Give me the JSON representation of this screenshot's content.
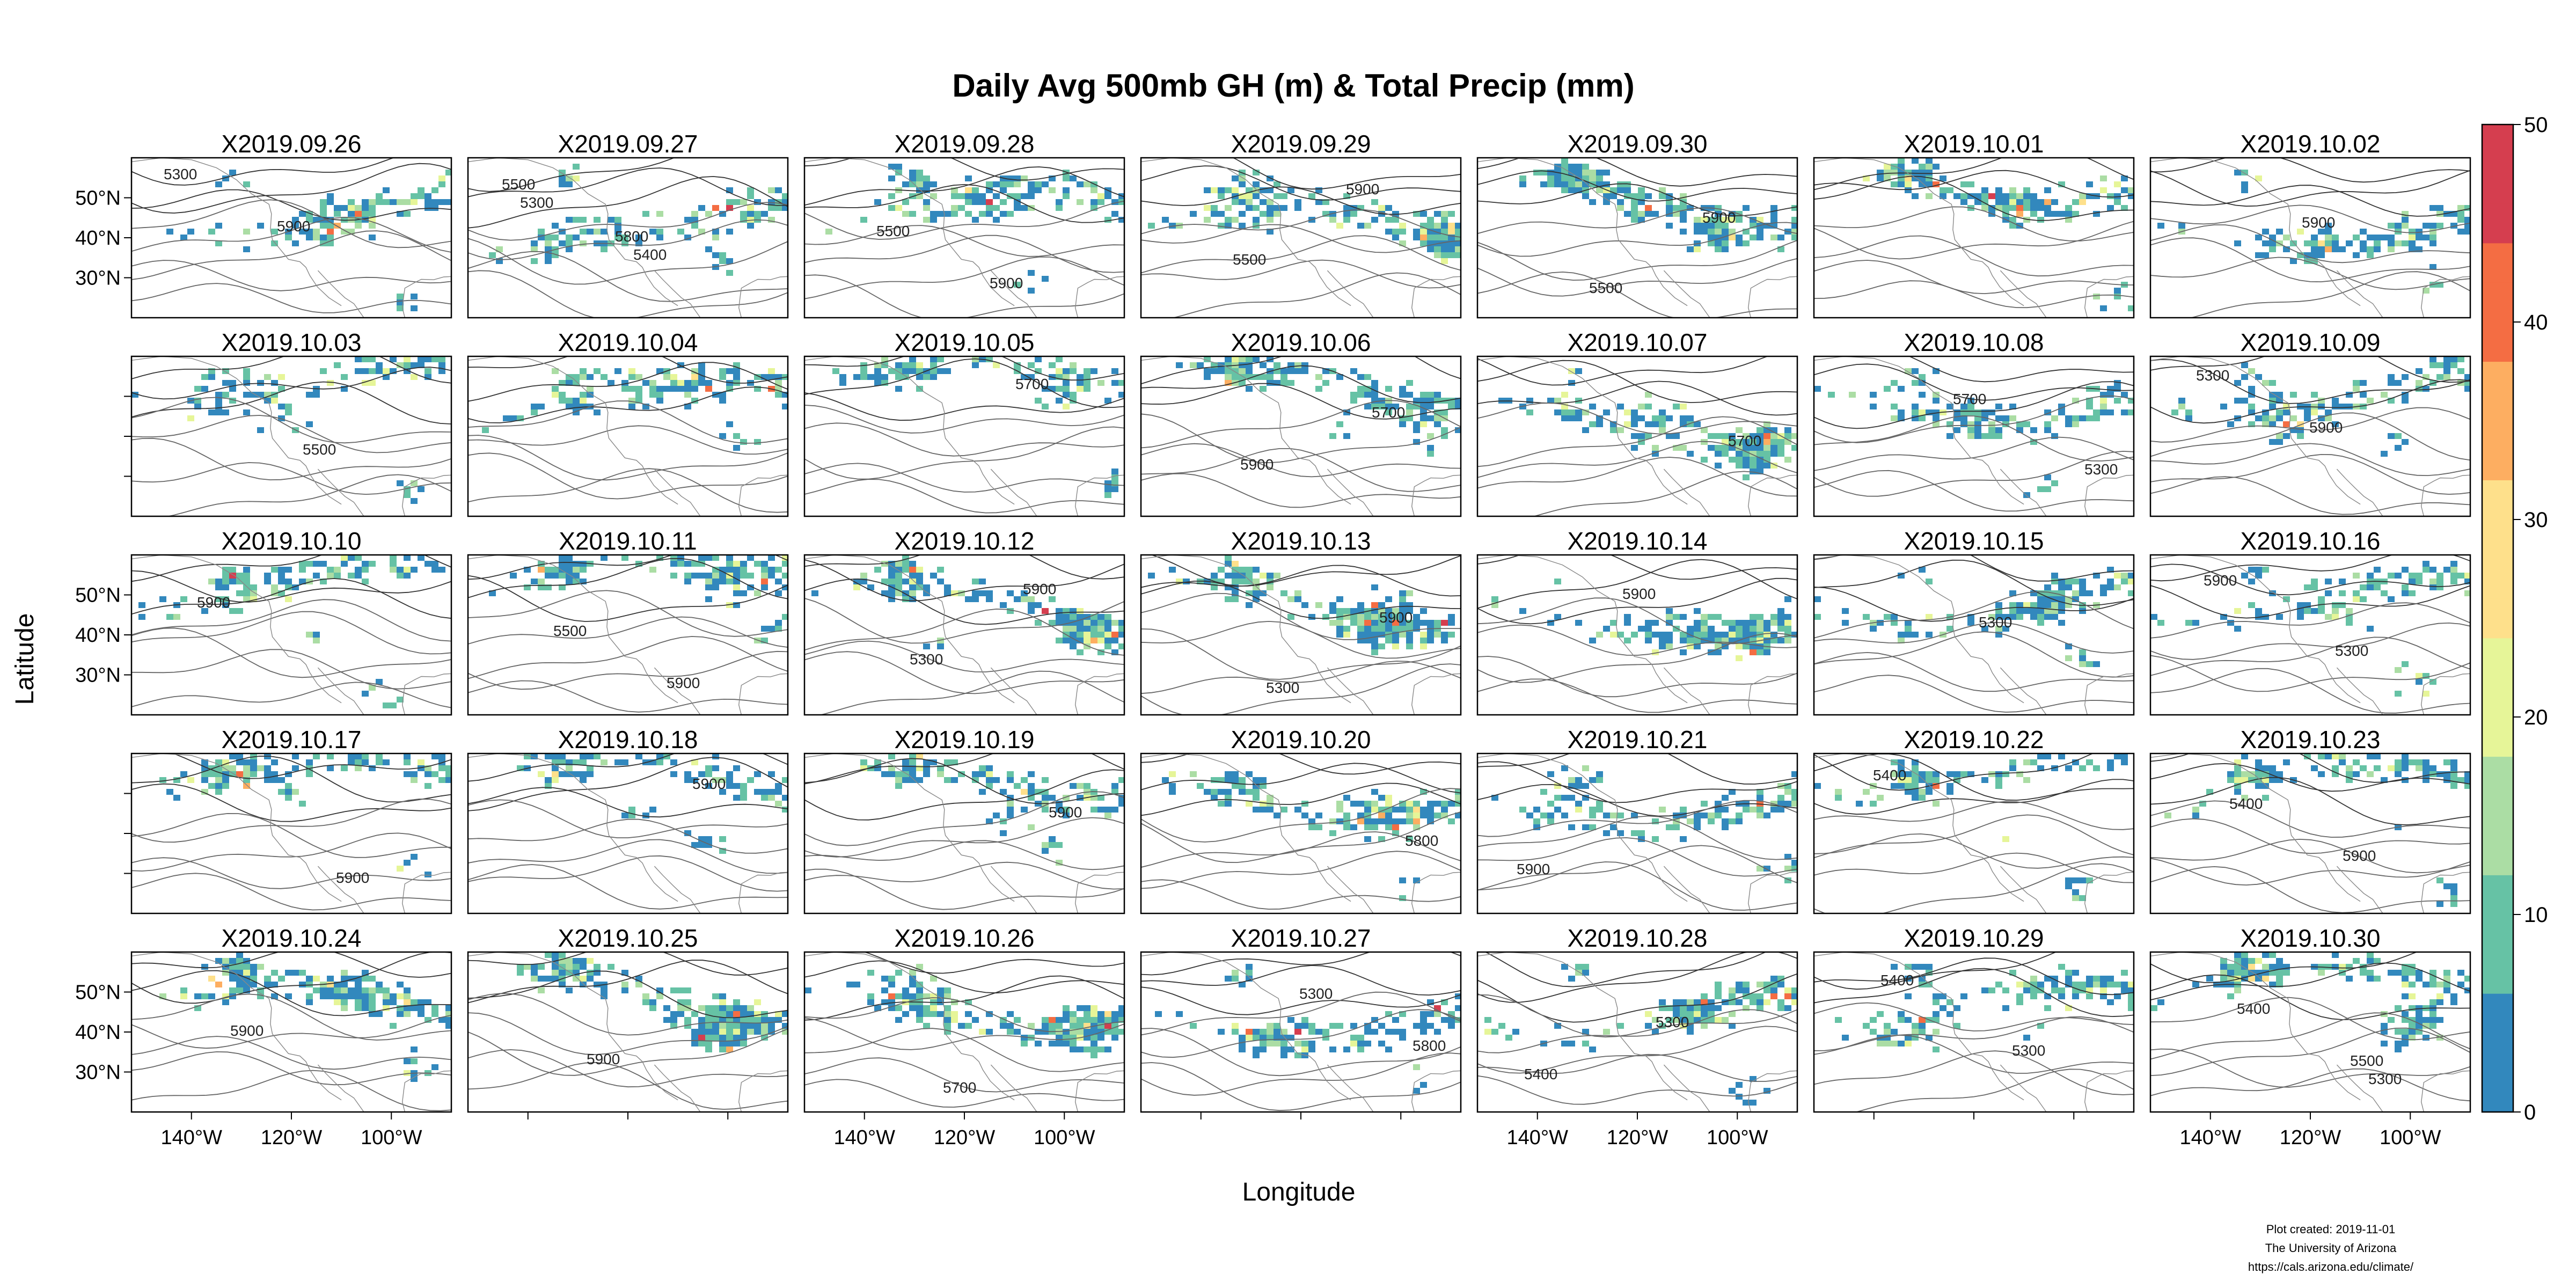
{
  "chart_data": {
    "type": "heatmap",
    "title": "Daily Avg 500mb GH (m) & Total Precip (mm)",
    "xlabel": "Longitude",
    "ylabel": "Latitude",
    "panels": [
      "X2019.09.26",
      "X2019.09.27",
      "X2019.09.28",
      "X2019.09.29",
      "X2019.09.30",
      "X2019.10.01",
      "X2019.10.02",
      "X2019.10.03",
      "X2019.10.04",
      "X2019.10.05",
      "X2019.10.06",
      "X2019.10.07",
      "X2019.10.08",
      "X2019.10.09",
      "X2019.10.10",
      "X2019.10.11",
      "X2019.10.12",
      "X2019.10.13",
      "X2019.10.14",
      "X2019.10.15",
      "X2019.10.16",
      "X2019.10.17",
      "X2019.10.18",
      "X2019.10.19",
      "X2019.10.20",
      "X2019.10.21",
      "X2019.10.22",
      "X2019.10.23",
      "X2019.10.24",
      "X2019.10.25",
      "X2019.10.26",
      "X2019.10.27",
      "X2019.10.28",
      "X2019.10.29",
      "X2019.10.30"
    ],
    "grid": {
      "columns": 7,
      "rows": 5
    },
    "xlim": [
      -152,
      -88
    ],
    "ylim": [
      20,
      60
    ],
    "x_ticks": [
      -140,
      -120,
      -100
    ],
    "x_tick_labels": [
      "140°W",
      "120°W",
      "100°W"
    ],
    "y_ticks": [
      30,
      40,
      50
    ],
    "y_tick_labels": [
      "30°N",
      "40°N",
      "50°N"
    ],
    "colorbar": {
      "min": 0,
      "max": 50,
      "ticks": [
        0,
        10,
        20,
        30,
        40,
        50
      ],
      "tick_labels": [
        "0",
        "10",
        "20",
        "30",
        "40",
        "50"
      ],
      "palette": [
        "#3288bd",
        "#66c2a5",
        "#abdda4",
        "#e6f598",
        "#fee08b",
        "#fdae61",
        "#f46d43",
        "#d53e4f"
      ]
    },
    "contour_labels": [
      {
        "panel": 0,
        "labels": [
          "5300",
          "5900"
        ]
      },
      {
        "panel": 1,
        "labels": [
          "5300",
          "5400",
          "5500",
          "5800"
        ]
      },
      {
        "panel": 2,
        "labels": [
          "5500",
          "5900"
        ]
      },
      {
        "panel": 3,
        "labels": [
          "5500",
          "5900"
        ]
      },
      {
        "panel": 4,
        "labels": [
          "5500",
          "5900"
        ]
      },
      {
        "panel": 6,
        "labels": [
          "5900"
        ]
      },
      {
        "panel": 7,
        "labels": [
          "5500"
        ]
      },
      {
        "panel": 9,
        "labels": [
          "5700"
        ]
      },
      {
        "panel": 10,
        "labels": [
          "5700",
          "5900"
        ]
      },
      {
        "panel": 11,
        "labels": [
          "5700"
        ]
      },
      {
        "panel": 12,
        "labels": [
          "5300",
          "5700"
        ]
      },
      {
        "panel": 13,
        "labels": [
          "5300",
          "5900"
        ]
      },
      {
        "panel": 14,
        "labels": [
          "5900"
        ]
      },
      {
        "panel": 15,
        "labels": [
          "5500",
          "5900"
        ]
      },
      {
        "panel": 16,
        "labels": [
          "5300",
          "5900"
        ]
      },
      {
        "panel": 17,
        "labels": [
          "5300",
          "5900"
        ]
      },
      {
        "panel": 18,
        "labels": [
          "5900"
        ]
      },
      {
        "panel": 19,
        "labels": [
          "5300"
        ]
      },
      {
        "panel": 20,
        "labels": [
          "5300",
          "5900"
        ]
      },
      {
        "panel": 21,
        "labels": [
          "5900"
        ]
      },
      {
        "panel": 22,
        "labels": [
          "5900"
        ]
      },
      {
        "panel": 23,
        "labels": [
          "5900"
        ]
      },
      {
        "panel": 24,
        "labels": [
          "5800"
        ]
      },
      {
        "panel": 25,
        "labels": [
          "5900"
        ]
      },
      {
        "panel": 26,
        "labels": [
          "5400"
        ]
      },
      {
        "panel": 27,
        "labels": [
          "5400",
          "5900"
        ]
      },
      {
        "panel": 28,
        "labels": [
          "5900"
        ]
      },
      {
        "panel": 29,
        "labels": [
          "5900"
        ]
      },
      {
        "panel": 30,
        "labels": [
          "5700"
        ]
      },
      {
        "panel": 31,
        "labels": [
          "5300",
          "5800"
        ]
      },
      {
        "panel": 32,
        "labels": [
          "5300",
          "5400"
        ]
      },
      {
        "panel": 33,
        "labels": [
          "5300",
          "5400"
        ]
      },
      {
        "panel": 34,
        "labels": [
          "5300",
          "5400",
          "5500"
        ]
      }
    ]
  },
  "credits": {
    "line1": "Plot created: 2019-11-01",
    "line2": "The University of Arizona",
    "line3": "https://cals.arizona.edu/climate/"
  }
}
